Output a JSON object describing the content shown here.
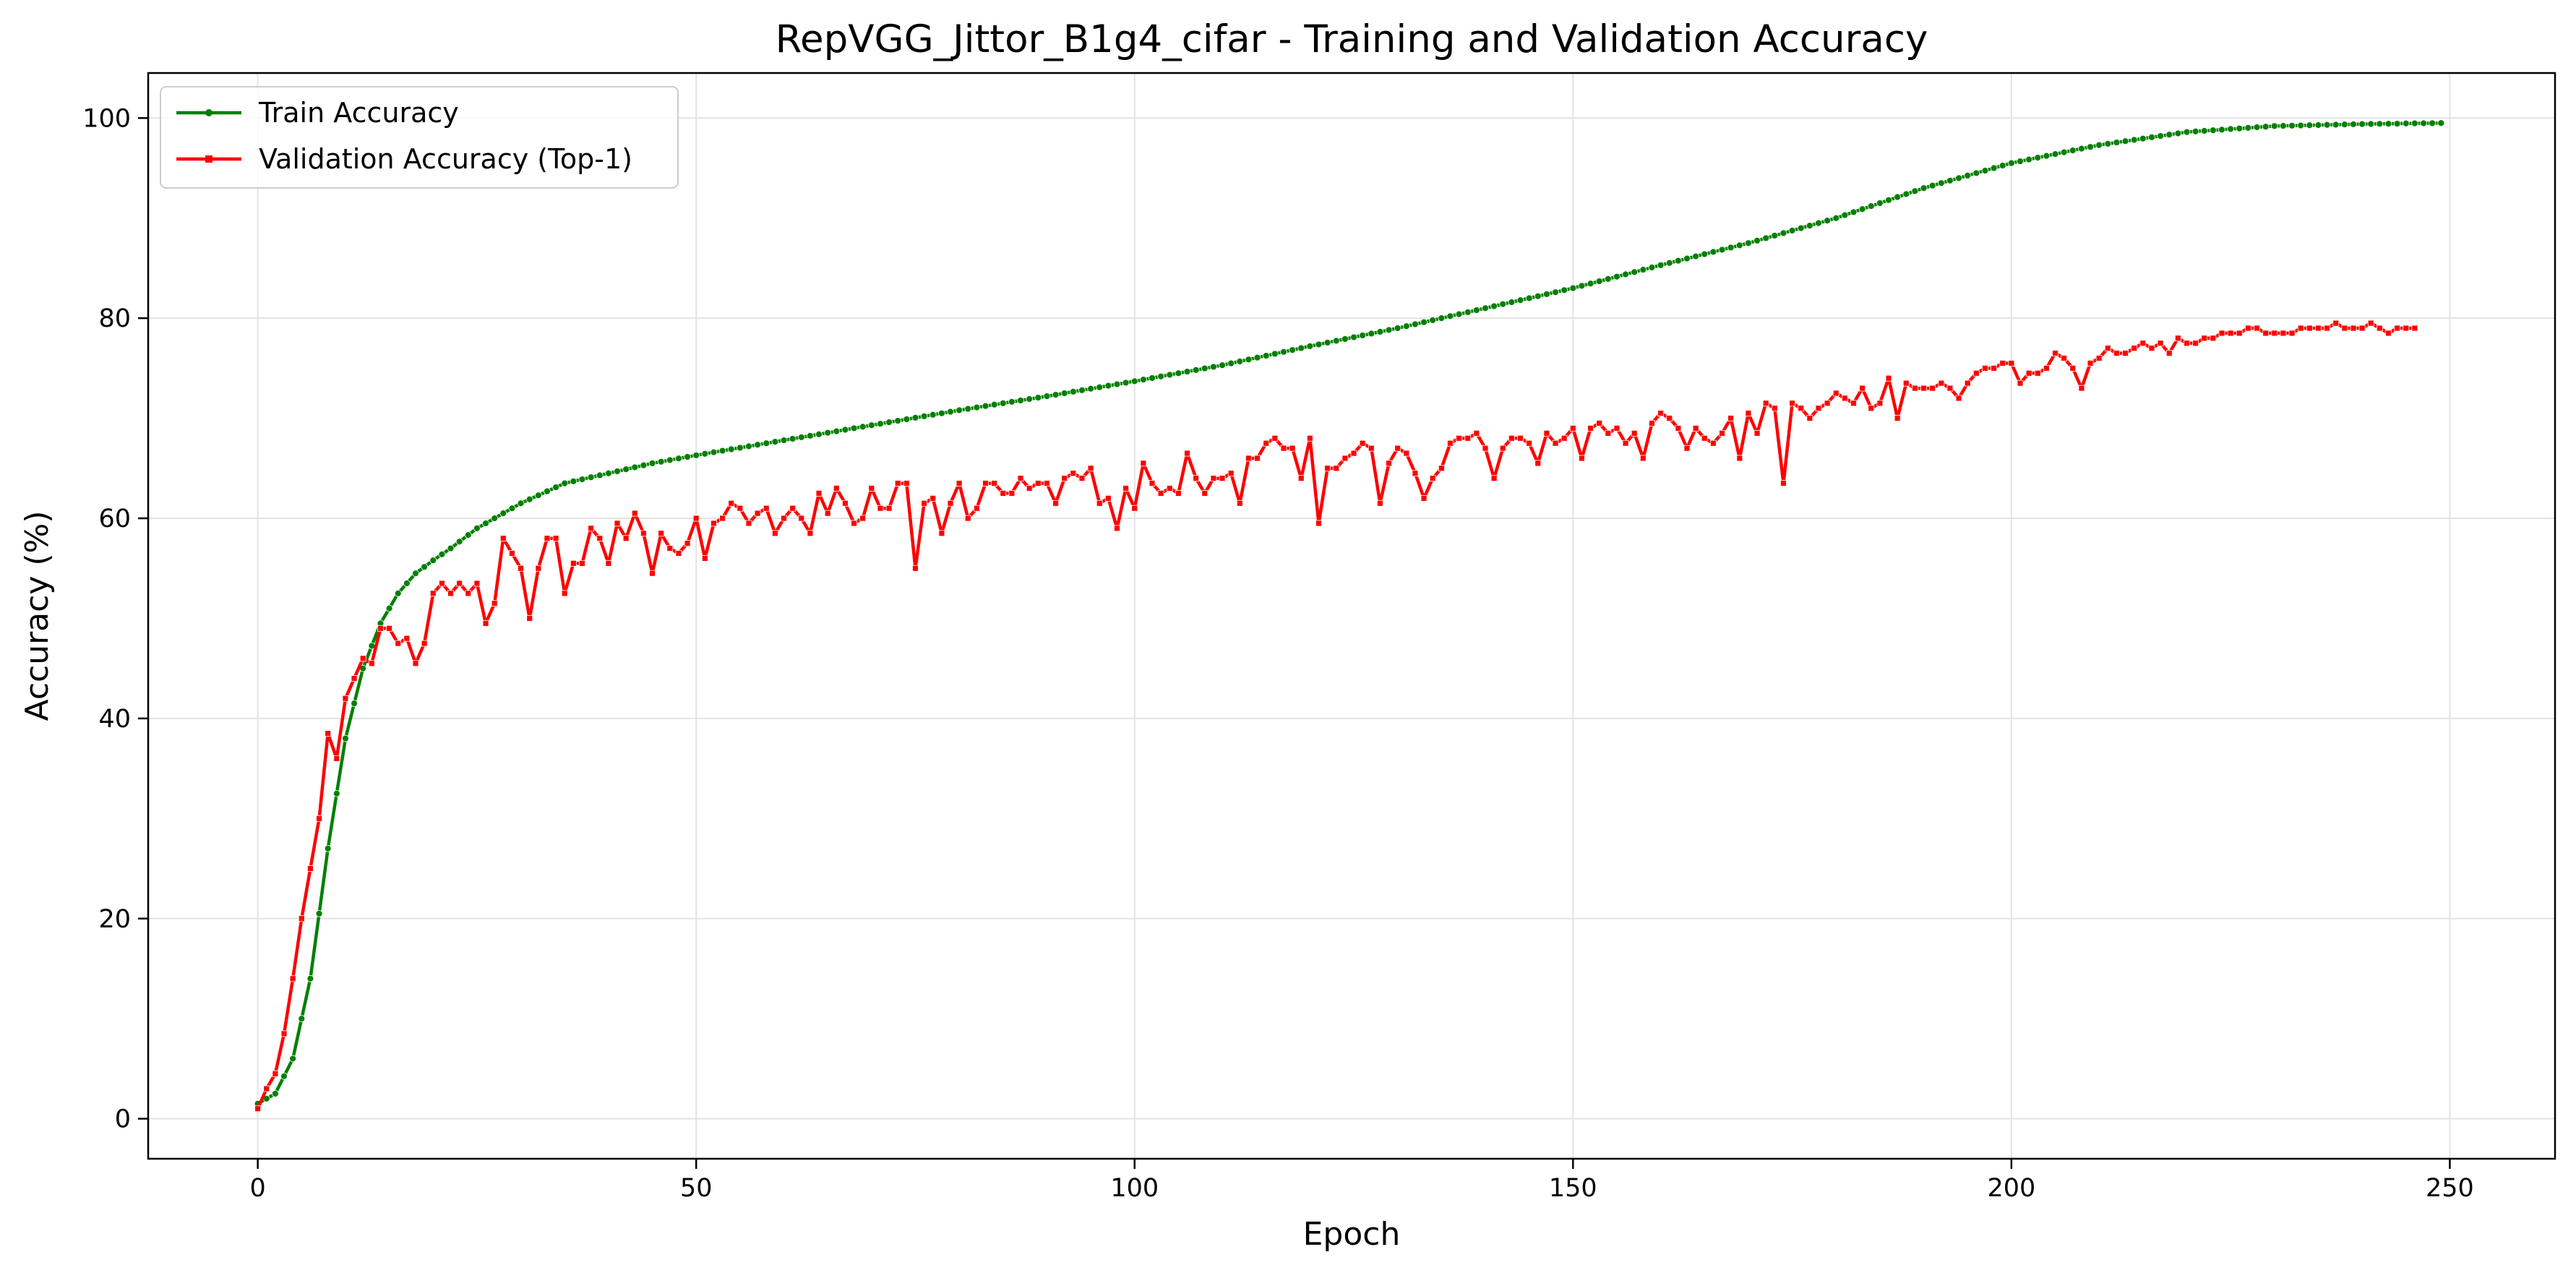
{
  "chart_data": {
    "type": "line",
    "title": "RepVGG_Jittor_B1g4_cifar - Training and Validation Accuracy",
    "xlabel": "Epoch",
    "ylabel": "Accuracy (%)",
    "xlim": [
      -12.5,
      262
    ],
    "ylim": [
      -4,
      104.5
    ],
    "xticks": [
      0,
      50,
      100,
      150,
      200,
      250
    ],
    "yticks": [
      0,
      20,
      40,
      60,
      80,
      100
    ],
    "grid": true,
    "legend_position": "top-left",
    "series": [
      {
        "name": "Train Accuracy",
        "color": "#008000",
        "marker": "circle",
        "anchors": [
          [
            0,
            1.5
          ],
          [
            2,
            2.5
          ],
          [
            4,
            6
          ],
          [
            6,
            14
          ],
          [
            8,
            27
          ],
          [
            10,
            38
          ],
          [
            12,
            45
          ],
          [
            14,
            49.5
          ],
          [
            16,
            52.5
          ],
          [
            18,
            54.5
          ],
          [
            20,
            55.8
          ],
          [
            22,
            57
          ],
          [
            25,
            59
          ],
          [
            30,
            61.5
          ],
          [
            35,
            63.5
          ],
          [
            40,
            64.5
          ],
          [
            45,
            65.5
          ],
          [
            50,
            66.3
          ],
          [
            60,
            67.8
          ],
          [
            70,
            69.3
          ],
          [
            80,
            70.8
          ],
          [
            90,
            72.2
          ],
          [
            100,
            73.7
          ],
          [
            110,
            75.3
          ],
          [
            120,
            77.2
          ],
          [
            130,
            79
          ],
          [
            140,
            81
          ],
          [
            150,
            83
          ],
          [
            160,
            85.3
          ],
          [
            170,
            87.5
          ],
          [
            180,
            90
          ],
          [
            190,
            93
          ],
          [
            200,
            95.5
          ],
          [
            210,
            97.3
          ],
          [
            220,
            98.6
          ],
          [
            230,
            99.2
          ],
          [
            240,
            99.4
          ],
          [
            249,
            99.5
          ]
        ]
      },
      {
        "name": "Validation Accuracy (Top-1)",
        "color": "#ff0000",
        "marker": "square",
        "values": [
          1,
          3,
          4.5,
          8.5,
          14,
          20,
          25,
          30,
          38.5,
          36,
          42,
          44,
          46,
          45.5,
          49,
          49,
          47.5,
          48,
          45.5,
          47.5,
          52.5,
          53.5,
          52.5,
          53.5,
          52.5,
          53.5,
          49.5,
          51.5,
          58,
          56.5,
          55,
          50,
          55,
          58,
          58,
          52.5,
          55.5,
          55.5,
          59,
          58,
          55.5,
          59.5,
          58,
          60.5,
          58.5,
          54.5,
          58.5,
          57,
          56.5,
          57.5,
          60,
          56,
          59.5,
          60,
          61.5,
          61,
          59.5,
          60.5,
          61,
          58.5,
          60,
          61,
          60,
          58.5,
          62.5,
          60.5,
          63,
          61.5,
          59.5,
          60,
          63,
          61,
          61,
          63.5,
          63.5,
          55,
          61.5,
          62,
          58.5,
          61.5,
          63.5,
          60,
          61,
          63.5,
          63.5,
          62.5,
          62.5,
          64,
          63,
          63.5,
          63.5,
          61.5,
          64,
          64.5,
          64,
          65,
          61.5,
          62,
          59,
          63,
          61,
          65.5,
          63.5,
          62.5,
          63,
          62.5,
          66.5,
          64,
          62.5,
          64,
          64,
          64.5,
          61.5,
          66,
          66,
          67.5,
          68,
          67,
          67,
          64,
          68,
          59.5,
          65,
          65,
          66,
          66.5,
          67.5,
          67,
          61.5,
          65.5,
          67,
          66.5,
          64.5,
          62,
          64,
          65,
          67.5,
          68,
          68,
          68.5,
          67,
          64,
          67,
          68,
          68,
          67.5,
          65.5,
          68.5,
          67.5,
          68,
          69,
          66,
          69,
          69.5,
          68.5,
          69,
          67.5,
          68.5,
          66,
          69.5,
          70.5,
          70,
          69,
          67,
          69,
          68,
          67.5,
          68.5,
          70,
          66,
          70.5,
          68.5,
          71.5,
          71,
          63.5,
          71.5,
          71,
          70,
          71,
          71.5,
          72.5,
          72,
          71.5,
          73,
          71,
          71.5,
          74,
          70,
          73.5,
          73,
          73,
          73,
          73.5,
          73,
          72,
          73.5,
          74.5,
          75,
          75,
          75.5,
          75.5,
          73.5,
          74.5,
          74.5,
          75,
          76.5,
          76,
          75,
          73,
          75.5,
          76,
          77,
          76.5,
          76.5,
          77,
          77.5,
          77,
          77.5,
          76.5,
          78,
          77.5,
          77.5,
          78,
          78,
          78.5,
          78.5,
          78.5,
          79,
          79,
          78.5,
          78.5,
          78.5,
          78.5,
          79,
          79,
          79,
          79,
          79.5,
          79,
          79,
          79,
          79.5,
          79,
          78.5,
          79,
          79,
          79
        ]
      }
    ]
  }
}
